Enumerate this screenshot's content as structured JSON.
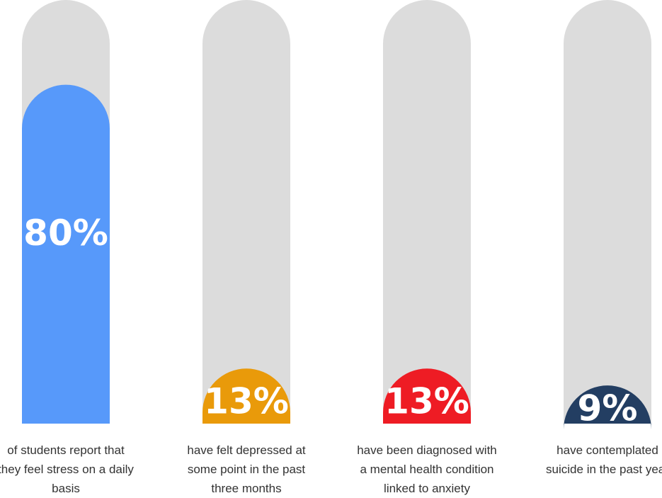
{
  "chart_data": {
    "type": "bar",
    "title": "",
    "xlabel": "",
    "ylabel": "",
    "ylim": [
      0,
      100
    ],
    "grid": false,
    "categories": [
      "of students report that they feel stress on a daily basis",
      "have felt depressed at some point in the past three months",
      "have been diagnosed with a mental health condition linked to anxiety",
      "have contemplated suicide in the past year"
    ],
    "values": [
      80,
      13,
      13,
      9
    ],
    "value_labels": [
      "80%",
      "13%",
      "13%",
      "9%"
    ],
    "colors": [
      "#5799fa",
      "#e99a0a",
      "#ee1c24",
      "#233e62"
    ],
    "track_color": "#dcdcdc"
  }
}
